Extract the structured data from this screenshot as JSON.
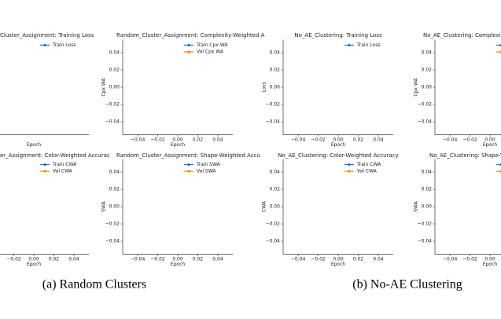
{
  "captions": [
    "(a) Random Clusters",
    "(b) No-AE Clustering"
  ],
  "chart_data": [
    {
      "type": "line",
      "title": "Cluster_Assignment: Training Loss",
      "xlabel": "Epoch",
      "xlim": [
        -0.055,
        0.055
      ],
      "ylim": [
        -0.055,
        0.055
      ],
      "series": [
        {
          "name": "Train Loss",
          "color": "#1f77b4"
        }
      ]
    },
    {
      "type": "line",
      "title": "Random_Cluster_Assignment: Complexity-Weighted A",
      "xlabel": "Epoch",
      "ylabel": "Cpx WA",
      "xlim": [
        -0.055,
        0.055
      ],
      "ylim": [
        -0.055,
        0.055
      ],
      "xticks": [
        {
          "value": -0.04,
          "label": "−0.04"
        },
        {
          "value": -0.02,
          "label": "−0.02"
        },
        {
          "value": 0,
          "label": "0.00"
        },
        {
          "value": 0.02,
          "label": "0.02"
        },
        {
          "value": 0.04,
          "label": "0.04"
        }
      ],
      "yticks": [
        {
          "value": -0.04,
          "label": "−0.04"
        },
        {
          "value": -0.02,
          "label": "−0.02"
        },
        {
          "value": 0,
          "label": "0.00"
        },
        {
          "value": 0.02,
          "label": "0.02"
        },
        {
          "value": 0.04,
          "label": "0.04"
        }
      ],
      "series": [
        {
          "name": "Train Cpx WA",
          "color": "#1f77b4"
        },
        {
          "name": "Val Cpx WA",
          "color": "#ff7f0e"
        }
      ]
    },
    {
      "type": "line",
      "title": "er_Assignment: Color-Weighted Accurac",
      "xlabel": "Epoch",
      "xlim": [
        -0.055,
        0.055
      ],
      "ylim": [
        -0.055,
        0.055
      ],
      "xticks": [
        {
          "value": -0.02,
          "label": "−0.02"
        },
        {
          "value": 0,
          "label": "0.00"
        },
        {
          "value": 0.02,
          "label": "0.02"
        },
        {
          "value": 0.04,
          "label": "0.04"
        }
      ],
      "series": [
        {
          "name": "Train CWA",
          "color": "#1f77b4"
        },
        {
          "name": "Val CWA",
          "color": "#ff7f0e"
        }
      ]
    },
    {
      "type": "line",
      "title": "Random_Cluster_Assignment: Shape-Weighted Accu",
      "xlabel": "Epoch",
      "ylabel": "SWA",
      "xlim": [
        -0.055,
        0.055
      ],
      "ylim": [
        -0.055,
        0.055
      ],
      "xticks": [
        {
          "value": -0.04,
          "label": "−0.04"
        },
        {
          "value": -0.02,
          "label": "−0.02"
        },
        {
          "value": 0,
          "label": "0.00"
        },
        {
          "value": 0.02,
          "label": "0.02"
        },
        {
          "value": 0.04,
          "label": "0.04"
        }
      ],
      "yticks": [
        {
          "value": -0.04,
          "label": "−0.04"
        },
        {
          "value": -0.02,
          "label": "−0.02"
        },
        {
          "value": 0,
          "label": "0.00"
        },
        {
          "value": 0.02,
          "label": "0.02"
        },
        {
          "value": 0.04,
          "label": "0.04"
        }
      ],
      "series": [
        {
          "name": "Train SWA",
          "color": "#1f77b4"
        },
        {
          "name": "Val SWA",
          "color": "#ff7f0e"
        }
      ]
    },
    {
      "type": "line",
      "title": "No_AE_Clustering: Training Loss",
      "xlabel": "Epoch",
      "ylabel": "Loss",
      "xlim": [
        -0.055,
        0.055
      ],
      "ylim": [
        -0.055,
        0.055
      ],
      "xticks": [
        {
          "value": -0.04,
          "label": "−0.04"
        },
        {
          "value": -0.02,
          "label": "−0.02"
        },
        {
          "value": 0,
          "label": "0.00"
        },
        {
          "value": 0.02,
          "label": "0.02"
        },
        {
          "value": 0.04,
          "label": "0.04"
        }
      ],
      "yticks": [
        {
          "value": -0.04,
          "label": "−0.04"
        },
        {
          "value": -0.02,
          "label": "−0.02"
        },
        {
          "value": 0,
          "label": "0.00"
        },
        {
          "value": 0.02,
          "label": "0.02"
        },
        {
          "value": 0.04,
          "label": "0.04"
        }
      ],
      "series": [
        {
          "name": "Train Loss",
          "color": "#1f77b4"
        }
      ]
    },
    {
      "type": "line",
      "title": "No_AE_Clustering: Complexit",
      "xlabel": "Epoch",
      "ylabel": "Cpx WA",
      "xlim": [
        -0.055,
        0.055
      ],
      "ylim": [
        -0.055,
        0.055
      ],
      "xticks": [
        {
          "value": -0.04,
          "label": "−0.04"
        },
        {
          "value": -0.02,
          "label": "−0.02"
        },
        {
          "value": 0,
          "label": "0.00"
        }
      ],
      "yticks": [
        {
          "value": -0.04,
          "label": "−0.04"
        },
        {
          "value": -0.02,
          "label": "−0.02"
        },
        {
          "value": 0,
          "label": "0.00"
        },
        {
          "value": 0.02,
          "label": "0.02"
        },
        {
          "value": 0.04,
          "label": "0.04"
        }
      ],
      "series": [
        {
          "color": "#1f77b4"
        },
        {
          "color": "#ff7f0e"
        }
      ]
    },
    {
      "type": "line",
      "title": "No_AE_Clustering: Color-Weighted Accuracy",
      "xlabel": "Epoch",
      "ylabel": "CWA",
      "xlim": [
        -0.055,
        0.055
      ],
      "ylim": [
        -0.055,
        0.055
      ],
      "xticks": [
        {
          "value": -0.04,
          "label": "−0.04"
        },
        {
          "value": -0.02,
          "label": "−0.02"
        },
        {
          "value": 0,
          "label": "0.00"
        },
        {
          "value": 0.02,
          "label": "0.02"
        },
        {
          "value": 0.04,
          "label": "0.04"
        }
      ],
      "yticks": [
        {
          "value": -0.04,
          "label": "−0.04"
        },
        {
          "value": -0.02,
          "label": "−0.02"
        },
        {
          "value": 0,
          "label": "0.00"
        },
        {
          "value": 0.02,
          "label": "0.02"
        },
        {
          "value": 0.04,
          "label": "0.04"
        }
      ],
      "series": [
        {
          "name": "Train CWA",
          "color": "#1f77b4"
        },
        {
          "name": "Val CWA",
          "color": "#ff7f0e"
        }
      ]
    },
    {
      "type": "line",
      "title": "No_AE_Clustering: Shape-V",
      "xlabel": "Epoch",
      "ylabel": "SWA",
      "xlim": [
        -0.055,
        0.055
      ],
      "ylim": [
        -0.055,
        0.055
      ],
      "xticks": [
        {
          "value": -0.04,
          "label": "−0.04"
        },
        {
          "value": -0.02,
          "label": "−0.02"
        },
        {
          "value": 0,
          "label": "0.00"
        }
      ],
      "yticks": [
        {
          "value": -0.04,
          "label": "−0.04"
        },
        {
          "value": -0.02,
          "label": "−0.02"
        },
        {
          "value": 0,
          "label": "0.00"
        },
        {
          "value": 0.02,
          "label": "0.02"
        },
        {
          "value": 0.04,
          "label": "0.04"
        }
      ],
      "series": [
        {
          "color": "#1f77b4"
        },
        {
          "color": "#ff7f0e"
        }
      ]
    }
  ]
}
